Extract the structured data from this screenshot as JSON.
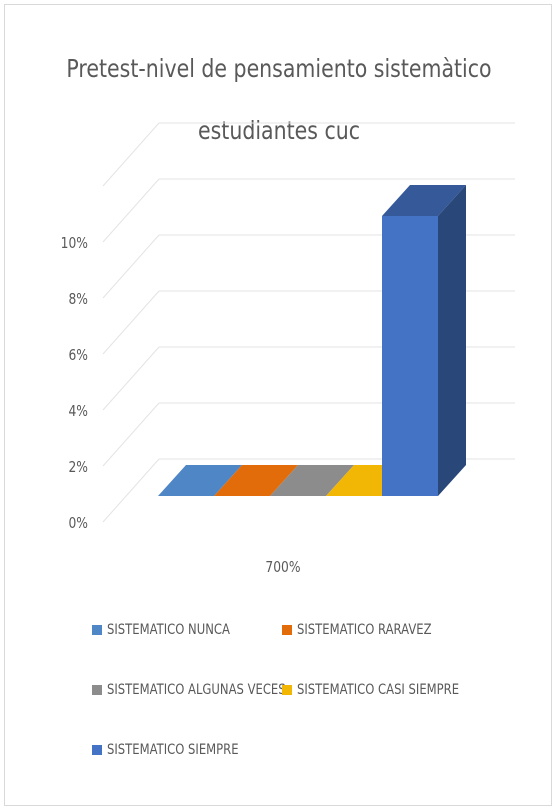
{
  "chart_data": {
    "type": "bar",
    "title_lines": [
      "Pretest-nivel de pensamiento sistemàtico",
      "estudiantes cuc"
    ],
    "categories": [
      "700%"
    ],
    "series": [
      {
        "name": "SISTEMATICO NUNCA",
        "values": [
          0
        ],
        "color": "#4f86c6"
      },
      {
        "name": "SISTEMATICO RARAVEZ",
        "values": [
          0
        ],
        "color": "#e36c0a"
      },
      {
        "name": "SISTEMATICO ALGUNAS VECES",
        "values": [
          0
        ],
        "color": "#8c8c8c"
      },
      {
        "name": "SISTEMATICO CASI SIEMPRE",
        "values": [
          0
        ],
        "color": "#f2b705"
      },
      {
        "name": "SISTEMATICO SIEMPRE",
        "values": [
          10
        ],
        "color": "#4472c4"
      }
    ],
    "yticks": [
      "0%",
      "2%",
      "4%",
      "6%",
      "8%",
      "10%"
    ],
    "ylim": [
      0,
      12
    ],
    "grid": true,
    "legend_position": "bottom"
  }
}
